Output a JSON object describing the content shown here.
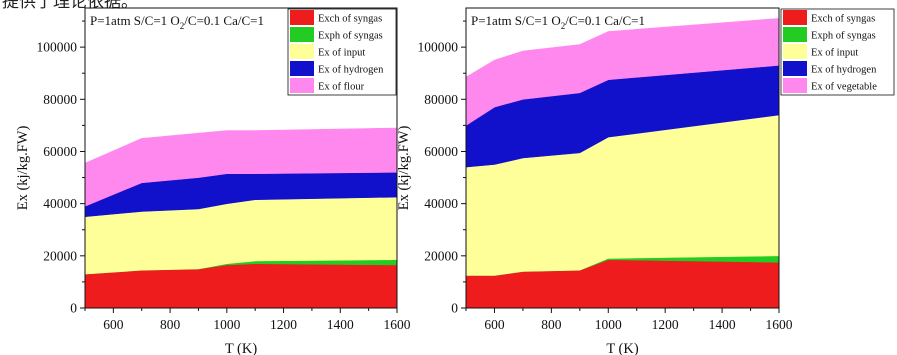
{
  "top_text": "提供了理论依据。",
  "colors": {
    "exch_syngas": "#ee1c1c",
    "exph_syngas": "#22cc22",
    "ex_input": "#ffff99",
    "ex_hydrogen": "#1111cc",
    "ex_feed": "#ff88ee"
  },
  "chart_data": [
    {
      "type": "area",
      "stacked": true,
      "annotation": "P=1atm S/C=1 O2/C=0.1 Ca/C=1",
      "annotation_parts": [
        "P=1atm S/C=1 O",
        "2",
        "/C=0.1 Ca/C=1"
      ],
      "xlabel": "T (K)",
      "ylabel": "Ex (kj/kg.FW)",
      "xlim": [
        500,
        1600
      ],
      "ylim": [
        0,
        115000
      ],
      "xticks": [
        600,
        800,
        1000,
        1200,
        1400,
        1600
      ],
      "yticks": [
        0,
        20000,
        40000,
        60000,
        80000,
        100000
      ],
      "ytick_labels": [
        "0",
        "20000",
        "40000",
        "60000",
        "80000",
        "100000"
      ],
      "legend_position": "top-right",
      "x": [
        500,
        700,
        900,
        1000,
        1100,
        1600
      ],
      "series": [
        {
          "name": "Exch of syngas",
          "color": "#ee1c1c",
          "values": [
            13000,
            14500,
            15000,
            16500,
            17000,
            16500
          ]
        },
        {
          "name": "Exph of syngas",
          "color": "#22cc22",
          "values": [
            0,
            0,
            0,
            500,
            1000,
            2000
          ]
        },
        {
          "name": "Ex of input",
          "color": "#ffff99",
          "values": [
            22000,
            22500,
            23000,
            23000,
            23500,
            24000
          ]
        },
        {
          "name": "Ex of hydrogen",
          "color": "#1111cc",
          "values": [
            4000,
            11000,
            12000,
            11500,
            10000,
            9500
          ]
        },
        {
          "name": "Ex of flour",
          "color": "#ff88ee",
          "values": [
            16500,
            17000,
            17000,
            16500,
            16500,
            17000
          ]
        }
      ]
    },
    {
      "type": "area",
      "stacked": true,
      "annotation": "P=1atm S/C=1 O2/C=0.1 Ca/C=1",
      "annotation_parts": [
        "P=1atm S/C=1 O",
        "2",
        "/C=0.1 Ca/C=1"
      ],
      "xlabel": "T (K)",
      "ylabel": "Ex (kj/kg.FW)",
      "xlim": [
        500,
        1600
      ],
      "ylim": [
        0,
        115000
      ],
      "xticks": [
        600,
        800,
        1000,
        1200,
        1400,
        1600
      ],
      "yticks": [
        0,
        20000,
        40000,
        60000,
        80000,
        100000
      ],
      "ytick_labels": [
        "0",
        "20000",
        "40000",
        "60000",
        "80000",
        "100000"
      ],
      "legend_position": "top-right",
      "x": [
        500,
        600,
        700,
        900,
        1000,
        1600
      ],
      "series": [
        {
          "name": "Exch of syngas",
          "color": "#ee1c1c",
          "values": [
            12500,
            12500,
            14000,
            14500,
            18500,
            17500
          ]
        },
        {
          "name": "Exph of syngas",
          "color": "#22cc22",
          "values": [
            0,
            0,
            0,
            0,
            500,
            2500
          ]
        },
        {
          "name": "Ex of input",
          "color": "#ffff99",
          "values": [
            41500,
            42500,
            43500,
            45000,
            46500,
            54000
          ]
        },
        {
          "name": "Ex of hydrogen",
          "color": "#1111cc",
          "values": [
            16000,
            22000,
            22500,
            23000,
            22000,
            19000
          ]
        },
        {
          "name": "Ex of vegetable",
          "color": "#ff88ee",
          "values": [
            18500,
            18000,
            18500,
            18500,
            18500,
            18000
          ]
        }
      ]
    }
  ]
}
